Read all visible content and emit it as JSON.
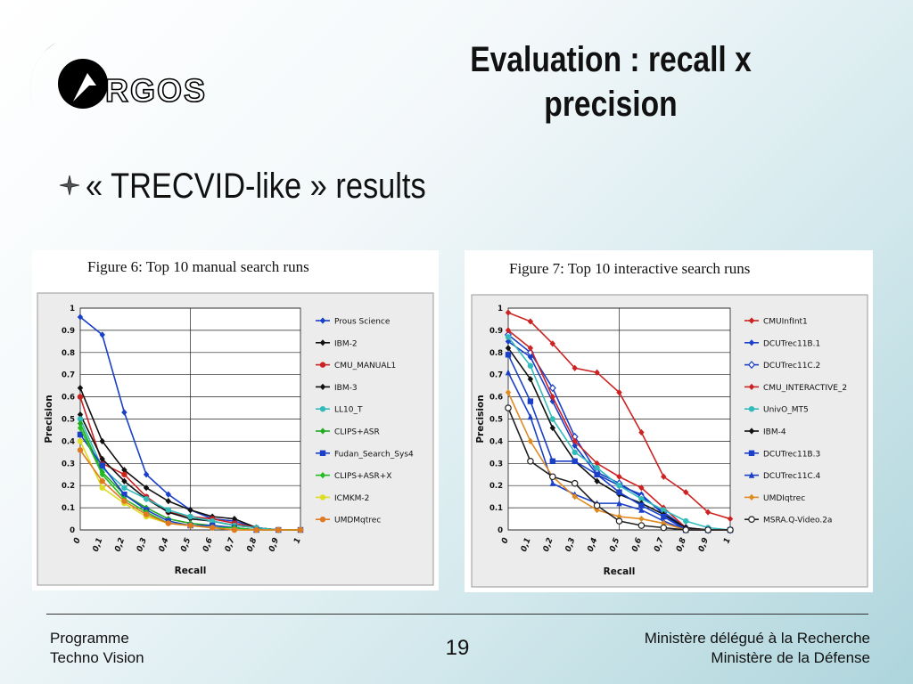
{
  "slide": {
    "logo_text": "RGOS",
    "title": "Evaluation : recall x precision",
    "bullet": "« TRECVID-like » results",
    "footer_left": [
      "Programme",
      "Techno Vision"
    ],
    "page_number": "19",
    "footer_right": [
      "Ministère délégué à la Recherche",
      "Ministère de la Défense"
    ]
  },
  "chart_data": [
    {
      "type": "line",
      "title": "Figure 6:  Top 10 manual search runs",
      "xlabel": "Recall",
      "ylabel": "Precision",
      "xlim": [
        0,
        1
      ],
      "ylim": [
        0,
        1
      ],
      "grid": true,
      "legend": "right",
      "x": [
        0,
        0.1,
        0.2,
        0.3,
        0.4,
        0.5,
        0.6,
        0.7,
        0.8,
        0.9,
        1
      ],
      "x_tick_labels": [
        "0",
        "0,1",
        "0,2",
        "0,3",
        "0,4",
        "0,5",
        "0,6",
        "0,7",
        "0,8",
        "0,9",
        "1"
      ],
      "y_tick_labels": [
        "0",
        "0.1",
        "0.2",
        "0.3",
        "0.4",
        "0.5",
        "0.6",
        "0.7",
        "0.8",
        "0.9",
        "1"
      ],
      "series": [
        {
          "name": "Prous Science",
          "color": "#1a3fc8",
          "marker": "diamond",
          "values": [
            0.96,
            0.88,
            0.53,
            0.25,
            0.16,
            0.09,
            0.05,
            0.04,
            0.01,
            0.0,
            0.0
          ]
        },
        {
          "name": "IBM-2",
          "color": "#111111",
          "marker": "diamond",
          "values": [
            0.64,
            0.4,
            0.27,
            0.19,
            0.13,
            0.09,
            0.06,
            0.05,
            0.01,
            0.0,
            0.0
          ]
        },
        {
          "name": "CMU_MANUAL1",
          "color": "#cc2222",
          "marker": "circle",
          "values": [
            0.6,
            0.3,
            0.25,
            0.15,
            0.08,
            0.06,
            0.05,
            0.03,
            0.01,
            0.0,
            0.0
          ]
        },
        {
          "name": "IBM-3",
          "color": "#111111",
          "marker": "diamond",
          "values": [
            0.52,
            0.32,
            0.22,
            0.14,
            0.08,
            0.05,
            0.04,
            0.02,
            0.01,
            0.0,
            0.0
          ]
        },
        {
          "name": "LL10_T",
          "color": "#33bbbb",
          "marker": "circle",
          "values": [
            0.5,
            0.28,
            0.19,
            0.14,
            0.09,
            0.06,
            0.04,
            0.02,
            0.01,
            0.0,
            0.0
          ]
        },
        {
          "name": "CLIPS+ASR",
          "color": "#22aa22",
          "marker": "diamond",
          "values": [
            0.48,
            0.26,
            0.16,
            0.1,
            0.05,
            0.03,
            0.02,
            0.01,
            0.0,
            0.0,
            0.0
          ]
        },
        {
          "name": "Fudan_Search_Sys4",
          "color": "#1a3fc8",
          "marker": "square",
          "values": [
            0.43,
            0.29,
            0.16,
            0.09,
            0.04,
            0.02,
            0.02,
            0.01,
            0.0,
            0.0,
            0.0
          ]
        },
        {
          "name": "CLIPS+ASR+X",
          "color": "#22bb22",
          "marker": "diamond",
          "values": [
            0.46,
            0.25,
            0.14,
            0.08,
            0.03,
            0.02,
            0.01,
            0.01,
            0.0,
            0.0,
            0.0
          ]
        },
        {
          "name": "ICMKM-2",
          "color": "#dddd22",
          "marker": "circle",
          "values": [
            0.4,
            0.19,
            0.12,
            0.06,
            0.03,
            0.02,
            0.01,
            0.0,
            0.0,
            0.0,
            0.0
          ]
        },
        {
          "name": "UMDMqtrec",
          "color": "#e07a22",
          "marker": "circle",
          "values": [
            0.36,
            0.22,
            0.13,
            0.07,
            0.03,
            0.02,
            0.01,
            0.0,
            0.0,
            0.0,
            0.0
          ]
        }
      ]
    },
    {
      "type": "line",
      "title": "Figure 7:  Top 10 interactive search runs",
      "xlabel": "Recall",
      "ylabel": "Precision",
      "xlim": [
        0,
        1
      ],
      "ylim": [
        0,
        1
      ],
      "grid": true,
      "legend": "right",
      "x": [
        0,
        0.1,
        0.2,
        0.3,
        0.4,
        0.5,
        0.6,
        0.7,
        0.8,
        0.9,
        1
      ],
      "x_tick_labels": [
        "0",
        "0,1",
        "0,2",
        "0,3",
        "0,4",
        "0,5",
        "0,6",
        "0,7",
        "0,8",
        "0,9",
        "1"
      ],
      "y_tick_labels": [
        "0",
        "0.1",
        "0.2",
        "0.3",
        "0.4",
        "0.5",
        "0.6",
        "0.7",
        "0.8",
        "0.9",
        "1"
      ],
      "series": [
        {
          "name": "CMUInfInt1",
          "color": "#cc2222",
          "marker": "diamond",
          "values": [
            0.98,
            0.94,
            0.84,
            0.73,
            0.71,
            0.62,
            0.44,
            0.24,
            0.17,
            0.08,
            0.05
          ]
        },
        {
          "name": "DCUTrec11B.1",
          "color": "#1a3fc8",
          "marker": "diamond",
          "values": [
            0.85,
            0.78,
            0.58,
            0.38,
            0.25,
            0.2,
            0.16,
            0.07,
            0.0,
            0.0,
            0.0
          ]
        },
        {
          "name": "DCUTrec11C.2",
          "color": "#1a3fc8",
          "marker": "diamond-open",
          "values": [
            0.88,
            0.8,
            0.64,
            0.42,
            0.26,
            0.21,
            0.15,
            0.08,
            0.01,
            0.0,
            0.0
          ]
        },
        {
          "name": "CMU_INTERACTIVE_2",
          "color": "#cc2222",
          "marker": "diamond",
          "values": [
            0.9,
            0.82,
            0.6,
            0.4,
            0.3,
            0.24,
            0.19,
            0.1,
            0.01,
            0.0,
            0.0
          ]
        },
        {
          "name": "UnivO_MT5",
          "color": "#33bbbb",
          "marker": "circle",
          "values": [
            0.87,
            0.74,
            0.5,
            0.35,
            0.28,
            0.2,
            0.14,
            0.09,
            0.04,
            0.01,
            0.0
          ]
        },
        {
          "name": "IBM-4",
          "color": "#111111",
          "marker": "diamond",
          "values": [
            0.82,
            0.68,
            0.46,
            0.31,
            0.22,
            0.16,
            0.12,
            0.07,
            0.01,
            0.0,
            0.0
          ]
        },
        {
          "name": "DCUTrec11B.3",
          "color": "#1a3fc8",
          "marker": "square",
          "values": [
            0.79,
            0.58,
            0.31,
            0.31,
            0.25,
            0.17,
            0.11,
            0.06,
            0.0,
            0.0,
            0.0
          ]
        },
        {
          "name": "DCUTrec11C.4",
          "color": "#1a3fc8",
          "marker": "triangle",
          "values": [
            0.71,
            0.51,
            0.21,
            0.16,
            0.12,
            0.12,
            0.09,
            0.04,
            0.0,
            0.0,
            0.0
          ]
        },
        {
          "name": "UMDIqtrec",
          "color": "#e08a22",
          "marker": "diamond",
          "values": [
            0.62,
            0.4,
            0.24,
            0.15,
            0.09,
            0.06,
            0.05,
            0.03,
            0.0,
            0.0,
            0.0
          ]
        },
        {
          "name": "MSRA.Q-Video.2a",
          "color": "#222222",
          "marker": "circle-open",
          "values": [
            0.55,
            0.31,
            0.24,
            0.21,
            0.11,
            0.04,
            0.02,
            0.01,
            0.0,
            0.0,
            0.0
          ]
        }
      ]
    }
  ]
}
